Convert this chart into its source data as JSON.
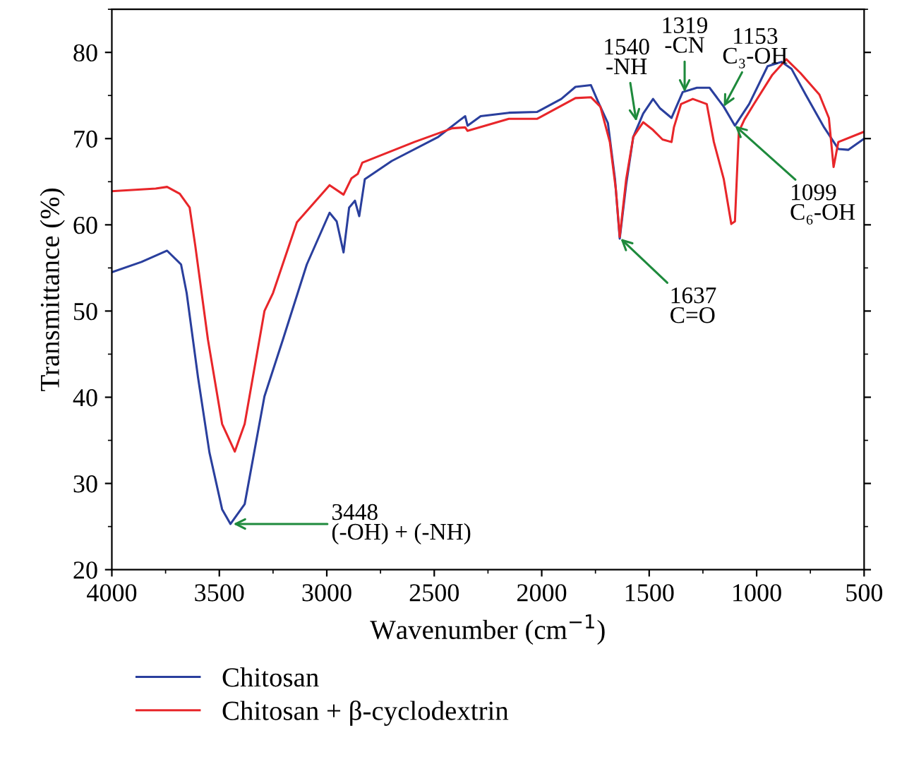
{
  "chart_data": {
    "type": "line",
    "xlabel": "Wavenumber (cm$^{−1}$)",
    "ylabel": "Transmittance (%)",
    "xlim": [
      4000,
      500
    ],
    "xticks": [
      4000,
      3500,
      3000,
      2500,
      2000,
      1500,
      1000,
      500
    ],
    "ylim": [
      20,
      85
    ],
    "yticks": [
      20,
      30,
      40,
      50,
      60,
      70,
      80
    ],
    "grid": false,
    "legend": "bottom left",
    "marker": "none",
    "line_style": "solid",
    "series": [
      {
        "name": "Chitosan",
        "color": "#2a3f9d",
        "x": [
          4000,
          3862,
          3743,
          3678,
          3652,
          3599,
          3546,
          3487,
          3448,
          3382,
          3290,
          3204,
          3093,
          2987,
          2954,
          2922,
          2896,
          2869,
          2849,
          2823,
          2698,
          2481,
          2383,
          2356,
          2345,
          2284,
          2153,
          2021,
          1909,
          1843,
          1771,
          1738,
          1692,
          1659,
          1637,
          1607,
          1574,
          1528,
          1482,
          1449,
          1396,
          1344,
          1278,
          1219,
          1153,
          1101,
          1035,
          949,
          884,
          838,
          772,
          686,
          620,
          574,
          500
        ],
        "values": [
          54.5,
          55.7,
          57,
          55.4,
          52.1,
          42.3,
          33.6,
          27,
          25.3,
          27.6,
          40.1,
          46.7,
          55.4,
          61.4,
          60.4,
          56.8,
          62,
          62.8,
          61,
          65.3,
          67.4,
          70.2,
          72.1,
          72.6,
          71.5,
          72.6,
          73,
          73.1,
          74.6,
          76,
          76.2,
          74.3,
          71.8,
          65.3,
          58.4,
          64.7,
          70.2,
          72.9,
          74.6,
          73.5,
          72.4,
          75.4,
          75.9,
          75.9,
          73.7,
          71.5,
          74,
          78.4,
          78.9,
          78.1,
          75.1,
          71.3,
          68.8,
          68.7,
          70
        ]
      },
      {
        "name": "Chitosan + β-cyclodextrin",
        "color": "#e8262a",
        "x": [
          4000,
          3796,
          3743,
          3684,
          3638,
          3612,
          3553,
          3487,
          3428,
          3382,
          3290,
          3250,
          3139,
          2987,
          2922,
          2885,
          2856,
          2835,
          2593,
          2416,
          2356,
          2345,
          2153,
          2021,
          1843,
          1771,
          1727,
          1683,
          1655,
          1637,
          1607,
          1574,
          1528,
          1482,
          1438,
          1396,
          1385,
          1352,
          1297,
          1232,
          1199,
          1153,
          1118,
          1101,
          1083,
          1057,
          1013,
          927,
          862,
          796,
          708,
          664,
          642,
          620,
          500
        ],
        "values": [
          63.9,
          64.2,
          64.4,
          63.6,
          62,
          57.6,
          46.7,
          36.9,
          33.7,
          36.9,
          50,
          52.1,
          60.3,
          64.6,
          63.5,
          65.4,
          65.9,
          67.2,
          69.6,
          71.2,
          71.3,
          70.9,
          72.3,
          72.3,
          74.7,
          74.8,
          73.7,
          69.6,
          64.1,
          58.6,
          65.3,
          70.2,
          71.9,
          71,
          69.9,
          69.6,
          71.3,
          74,
          74.6,
          74,
          69.6,
          65.3,
          60.1,
          60.4,
          70.8,
          72.2,
          74,
          77.4,
          79.2,
          77.6,
          75.1,
          72.4,
          66.7,
          69.6,
          70.8
        ]
      }
    ],
    "annotations": [
      {
        "text": "3448\n(-OH) + (-NH)",
        "x": 3435,
        "y": 25.3
      },
      {
        "text": "1637\nC=O",
        "x": 1633,
        "y": 58.4
      },
      {
        "text": "1540\n-NH",
        "x": 1560,
        "y": 72
      },
      {
        "text": "1319\n-CN",
        "x": 1335,
        "y": 75.4
      },
      {
        "text": "1153\nC₃-OH",
        "x": 1153,
        "y": 73.7
      },
      {
        "text": "1099\nC₆-OH",
        "x": 1101,
        "y": 71.5
      }
    ]
  }
}
